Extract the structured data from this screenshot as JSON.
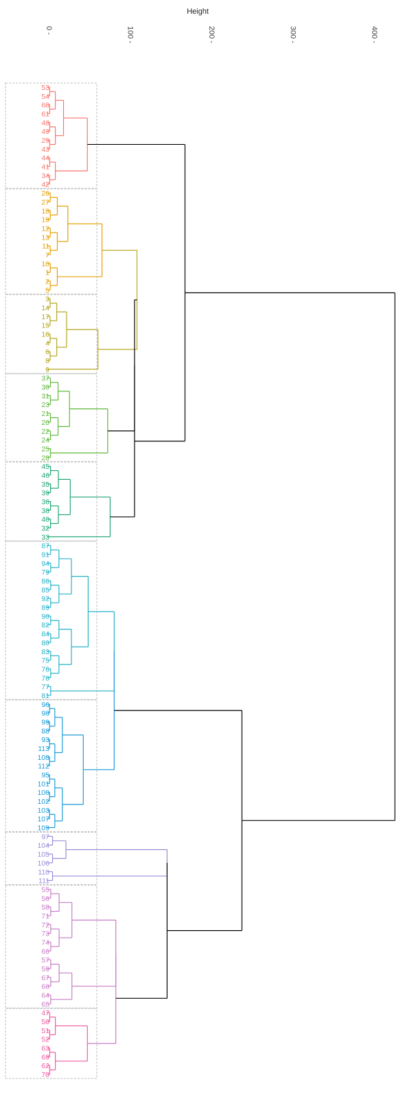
{
  "chart_data": {
    "type": "dendrogram",
    "title": "",
    "ylabel": "Height",
    "ylim": [
      0,
      420
    ],
    "y_ticks": [
      0,
      100,
      200,
      300,
      400
    ],
    "y_tick_labels": [
      "0 -",
      "100 -",
      "200 -",
      "300 -",
      "400 -"
    ],
    "leaf_order": [
      "53",
      "54",
      "60",
      "61",
      "48",
      "49",
      "29",
      "43",
      "44",
      "41",
      "34",
      "42",
      "26",
      "27",
      "18",
      "19",
      "12",
      "13",
      "11",
      "7",
      "10",
      "1",
      "2",
      "5",
      "3",
      "14",
      "17",
      "15",
      "16",
      "4",
      "6",
      "8",
      "9",
      "37",
      "30",
      "31",
      "23",
      "21",
      "20",
      "22",
      "24",
      "25",
      "28",
      "45",
      "46",
      "35",
      "39",
      "36",
      "38",
      "40",
      "32",
      "33",
      "87",
      "91",
      "94",
      "79",
      "86",
      "85",
      "92",
      "89",
      "90",
      "82",
      "84",
      "80",
      "83",
      "75",
      "76",
      "78",
      "77",
      "81",
      "96",
      "98",
      "99",
      "88",
      "93",
      "113",
      "108",
      "112",
      "95",
      "101",
      "100",
      "102",
      "103",
      "107",
      "109",
      "97",
      "104",
      "105",
      "106",
      "110",
      "111",
      "55",
      "56",
      "58",
      "71",
      "72",
      "73",
      "74",
      "66",
      "57",
      "59",
      "67",
      "68",
      "64",
      "65",
      "47",
      "50",
      "51",
      "52",
      "63",
      "69",
      "62",
      "70"
    ],
    "clusters": [
      {
        "color": "#F8766D",
        "count": 12
      },
      {
        "color": "#E69F00",
        "count": 12
      },
      {
        "color": "#B5A61E",
        "count": 9
      },
      {
        "color": "#5EB83A",
        "count": 10
      },
      {
        "color": "#1FA774",
        "count": 9
      },
      {
        "color": "#25B1C9",
        "count": 18
      },
      {
        "color": "#1C9BD8",
        "count": 15
      },
      {
        "color": "#9A8CD8",
        "count": 6
      },
      {
        "color": "#C77CC6",
        "count": 14
      },
      {
        "color": "#EE5BA2",
        "count": 8
      }
    ],
    "trunk_color": "#000000",
    "box_color": "#bbbbbb",
    "heights": {
      "c1": 50,
      "c2": 68,
      "c3": 63,
      "c4": 75,
      "c5": 78,
      "c6": 83,
      "c7": 45,
      "c8": 148,
      "c9": 85,
      "c10": 50,
      "c23": 111,
      "c234": 108,
      "c2345": 108,
      "c12345": 170,
      "c67": 83,
      "c910": 85,
      "c8910": 148,
      "c678910": 240,
      "root": 428
    }
  }
}
